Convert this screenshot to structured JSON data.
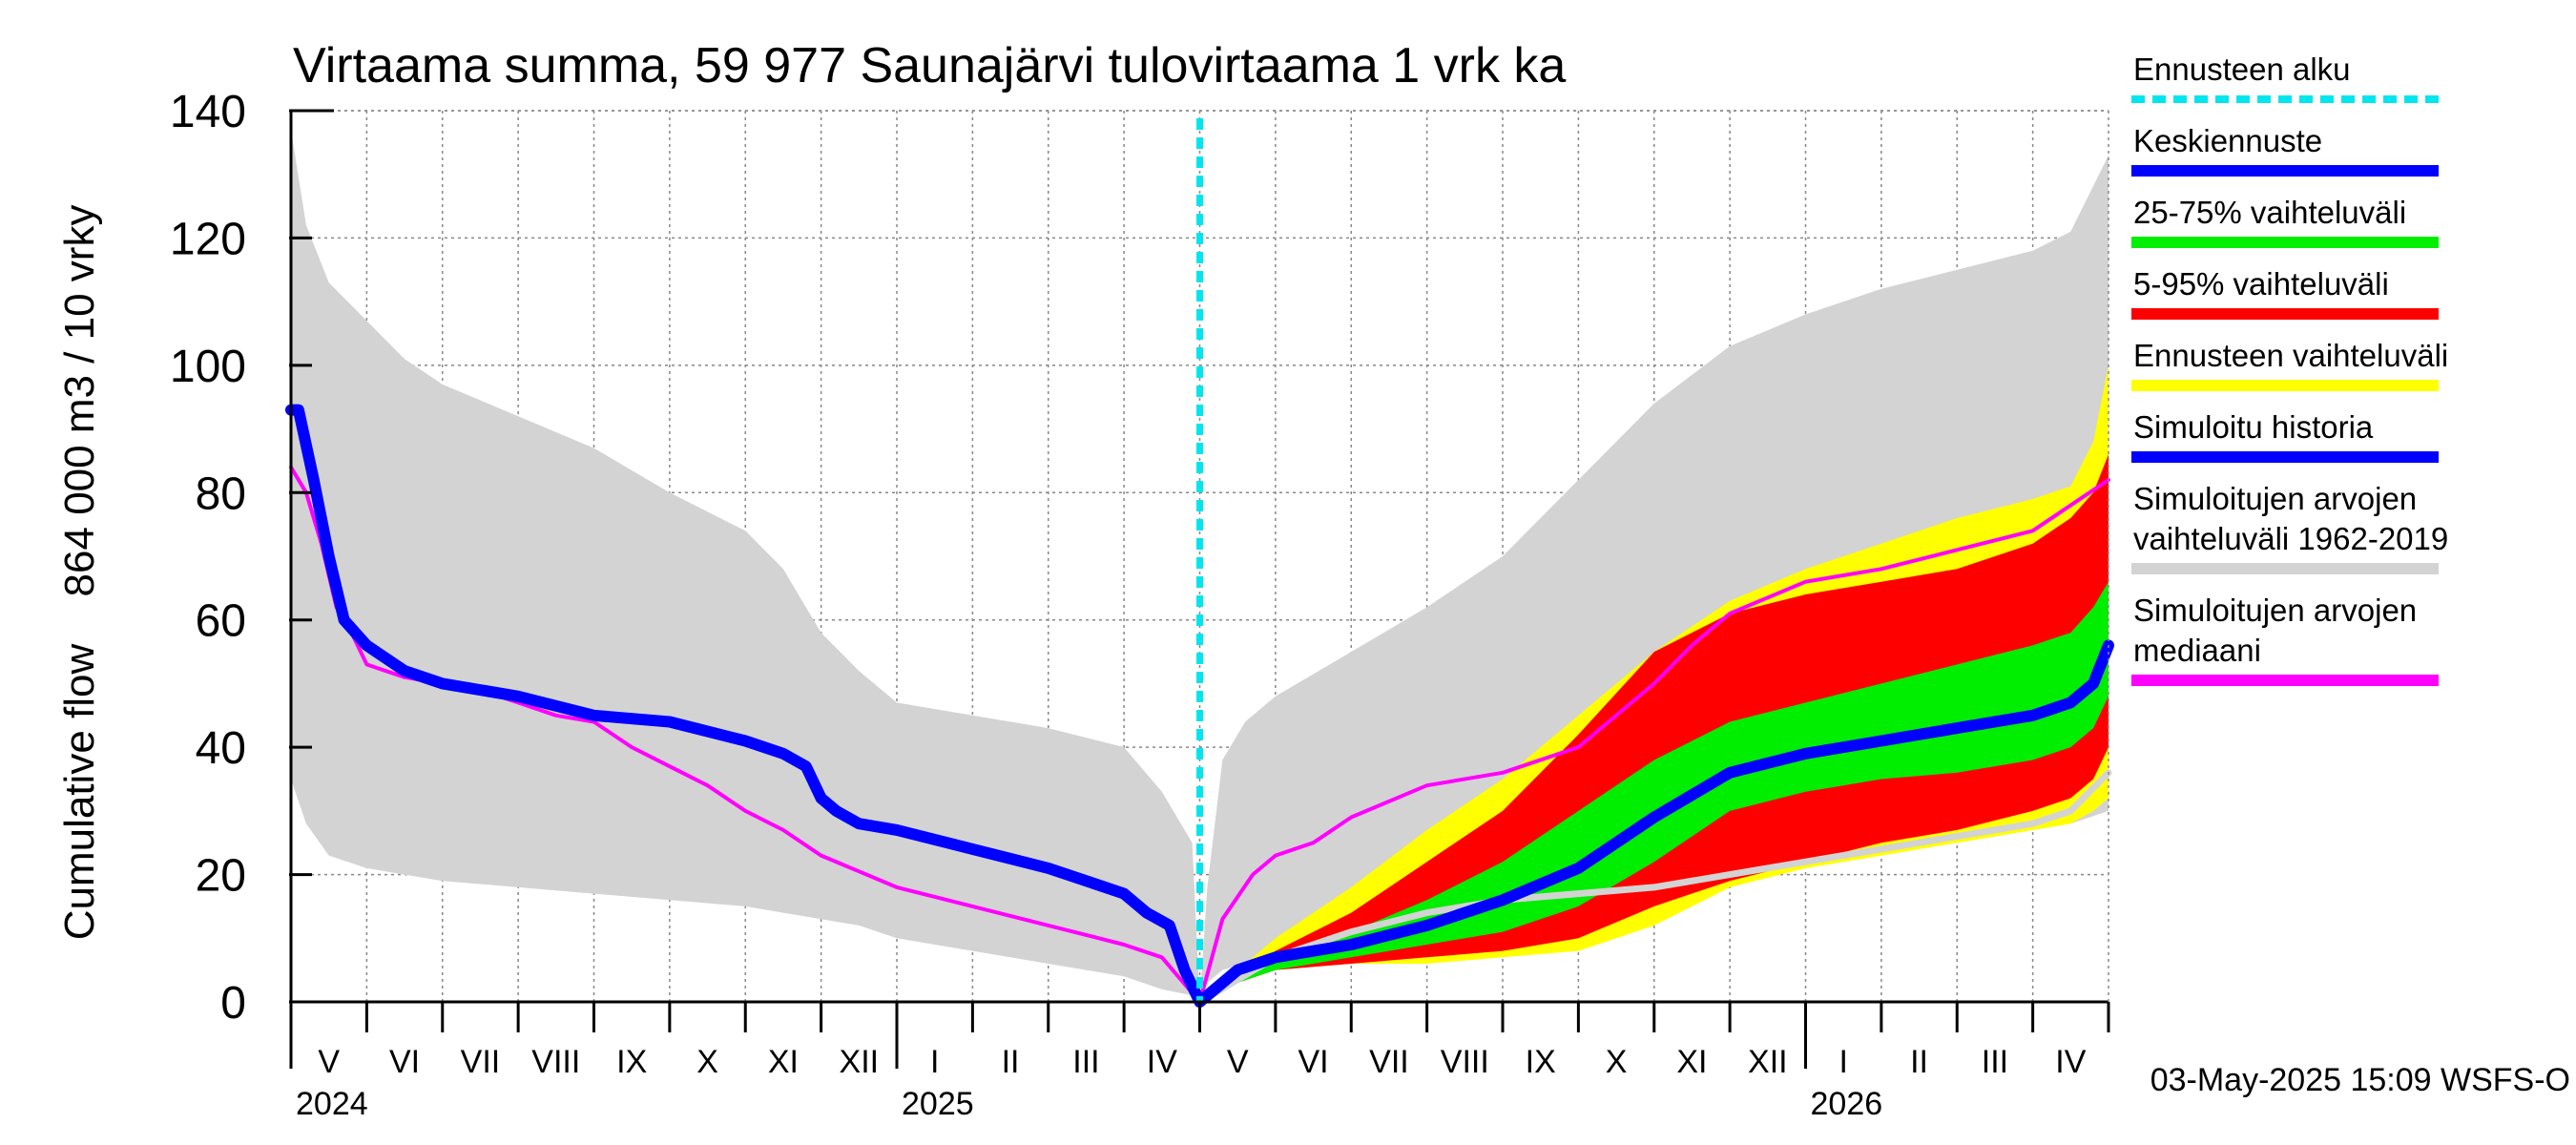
{
  "chart_data": {
    "type": "area",
    "title": "Virtaama summa, 59 977 Saunajärvi tulovirtaama 1 vrk ka",
    "ylabel_line1": "Cumulative flow",
    "ylabel_line2": "864 000 m3 / 10 vrky",
    "ylim": [
      0,
      140
    ],
    "yticks": [
      "0",
      "20",
      "40",
      "60",
      "80",
      "100",
      "120",
      "140"
    ],
    "ytick_values": [
      0,
      20,
      40,
      60,
      80,
      100,
      120,
      140
    ],
    "xlim_months": [
      0,
      24
    ],
    "month_labels": [
      "V",
      "VI",
      "VII",
      "VIII",
      "IX",
      "X",
      "XI",
      "XII",
      "I",
      "II",
      "III",
      "IV",
      "V",
      "VI",
      "VII",
      "VIII",
      "IX",
      "X",
      "XI",
      "XII",
      "I",
      "II",
      "III",
      "IV"
    ],
    "year_labels": [
      {
        "label": "2024",
        "month": 0
      },
      {
        "label": "2025",
        "month": 8
      },
      {
        "label": "2026",
        "month": 20
      }
    ],
    "forecast_start_month": 12,
    "timestamp": "03-May-2025 15:09 WSFS-O",
    "legend": [
      {
        "label": "Ennusteen alku",
        "color": "#00e5ee",
        "style": "dashed"
      },
      {
        "label": "Keskiennuste",
        "color": "#0000ff",
        "style": "line"
      },
      {
        "label": "25-75% vaihteluväli",
        "color": "#00ee00",
        "style": "line"
      },
      {
        "label": "5-95% vaihteluväli",
        "color": "#ff0000",
        "style": "line"
      },
      {
        "label": "Ennusteen vaihteluväli",
        "color": "#ffff00",
        "style": "line"
      },
      {
        "label": "Simuloitu historia",
        "color": "#0000ff",
        "style": "line"
      },
      {
        "label": "Simuloitujen arvojen vaihteluväli 1962-2019",
        "lines": [
          "Simuloitujen arvojen",
          "vaihteluväli 1962-2019"
        ],
        "color": "#d3d3d3",
        "style": "line"
      },
      {
        "label": "Simuloitujen arvojen mediaani",
        "lines": [
          "Simuloitujen arvojen",
          "mediaani"
        ],
        "color": "#ff00ff",
        "style": "line"
      }
    ],
    "history_range": {
      "x": [
        0,
        0.2,
        0.5,
        1,
        1.5,
        2,
        3,
        4,
        5,
        6,
        6.5,
        7,
        7.5,
        8,
        9,
        10,
        11,
        11.5,
        11.9,
        12
      ],
      "upper": [
        137,
        122,
        113,
        107,
        101,
        97,
        92,
        87,
        80,
        74,
        68,
        58,
        52,
        47,
        45,
        43,
        40,
        33,
        25,
        0
      ],
      "lower": [
        35,
        28,
        23,
        21,
        20,
        19,
        18,
        17,
        16,
        15,
        14,
        13,
        12,
        10,
        8,
        6,
        4,
        2,
        1,
        0
      ]
    },
    "history_median": {
      "x": [
        0,
        0.2,
        0.4,
        0.6,
        0.8,
        1,
        1.5,
        2,
        2.5,
        3,
        3.5,
        4,
        4.5,
        5,
        5.5,
        6,
        6.5,
        7,
        8,
        9,
        10,
        11,
        11.5,
        12
      ],
      "y": [
        84,
        80,
        72,
        62,
        58,
        53,
        51,
        50,
        49,
        47,
        45,
        44,
        40,
        37,
        34,
        30,
        27,
        23,
        18,
        15,
        12,
        9,
        7,
        0
      ]
    },
    "simulated_history": {
      "x": [
        0,
        0.1,
        0.3,
        0.5,
        0.7,
        1,
        1.5,
        2,
        3,
        4,
        5,
        6,
        6.5,
        6.8,
        7,
        7.2,
        7.5,
        8,
        9,
        10,
        10.5,
        11,
        11.3,
        11.6,
        11.8,
        12
      ],
      "y": [
        93,
        93,
        82,
        70,
        60,
        56,
        52,
        50,
        48,
        45,
        44,
        41,
        39,
        37,
        32,
        30,
        28,
        27,
        24,
        21,
        19,
        17,
        14,
        12,
        5,
        0
      ]
    },
    "forecast_range": {
      "x": [
        12,
        12.5,
        13,
        14,
        15,
        16,
        17,
        18,
        19,
        20,
        21,
        22,
        23,
        23.5,
        23.8,
        24
      ],
      "upper": [
        0,
        5,
        10,
        18,
        27,
        35,
        45,
        55,
        63,
        68,
        72,
        76,
        79,
        81,
        88,
        100
      ],
      "lower": [
        0,
        3,
        5,
        6,
        6,
        7,
        8,
        12,
        18,
        21,
        23,
        25,
        27,
        28,
        30,
        32
      ]
    },
    "p5_95": {
      "x": [
        12,
        12.5,
        13,
        14,
        15,
        16,
        17,
        18,
        19,
        20,
        21,
        22,
        23,
        23.5,
        23.8,
        24
      ],
      "upper": [
        0,
        4,
        8,
        14,
        22,
        30,
        42,
        55,
        61,
        64,
        66,
        68,
        72,
        76,
        80,
        86
      ],
      "lower": [
        0,
        3,
        5,
        6,
        7,
        8,
        10,
        15,
        19,
        22,
        25,
        27,
        30,
        32,
        35,
        40
      ]
    },
    "p25_75": {
      "x": [
        12,
        12.5,
        13,
        14,
        15,
        16,
        17,
        18,
        19,
        20,
        21,
        22,
        23,
        23.5,
        23.8,
        24
      ],
      "upper": [
        0,
        4,
        7,
        11,
        16,
        22,
        30,
        38,
        44,
        47,
        50,
        53,
        56,
        58,
        62,
        66
      ],
      "lower": [
        0,
        3,
        5,
        7,
        9,
        11,
        15,
        22,
        30,
        33,
        35,
        36,
        38,
        40,
        43,
        48
      ]
    },
    "forecast_median": {
      "x": [
        12,
        12.5,
        13,
        14,
        15,
        16,
        17,
        18,
        19,
        20,
        21,
        22,
        23,
        23.5,
        23.8,
        24
      ],
      "y": [
        0,
        5,
        7,
        9,
        12,
        16,
        21,
        29,
        36,
        39,
        41,
        43,
        45,
        47,
        50,
        56
      ]
    },
    "forecast_sim_median": {
      "x": [
        12,
        12.3,
        12.7,
        13,
        13.5,
        14,
        15,
        16,
        17,
        18,
        18.5,
        19,
        20,
        21,
        22,
        23,
        24
      ],
      "y": [
        0,
        13,
        20,
        23,
        25,
        29,
        34,
        36,
        40,
        50,
        56,
        61,
        66,
        68,
        71,
        74,
        82
      ]
    },
    "forecast_gray": {
      "x": [
        12,
        13,
        14,
        15,
        16,
        17,
        18,
        19,
        20,
        21,
        22,
        23,
        23.5,
        24
      ],
      "y": [
        0,
        7,
        11,
        14,
        16,
        17,
        18,
        20,
        22,
        24,
        26,
        28,
        30,
        36
      ]
    },
    "future_range": {
      "x": [
        12,
        12.1,
        12.3,
        12.6,
        13,
        14,
        15,
        16,
        17,
        18,
        19,
        20,
        21,
        22,
        23,
        23.5,
        24
      ],
      "upper": [
        0,
        18,
        38,
        44,
        48,
        55,
        62,
        70,
        82,
        94,
        103,
        108,
        112,
        115,
        118,
        121,
        133
      ],
      "lower": [
        0,
        3,
        5,
        6,
        7,
        9,
        11,
        13,
        15,
        18,
        20,
        22,
        24,
        25,
        27,
        28,
        30
      ]
    }
  }
}
